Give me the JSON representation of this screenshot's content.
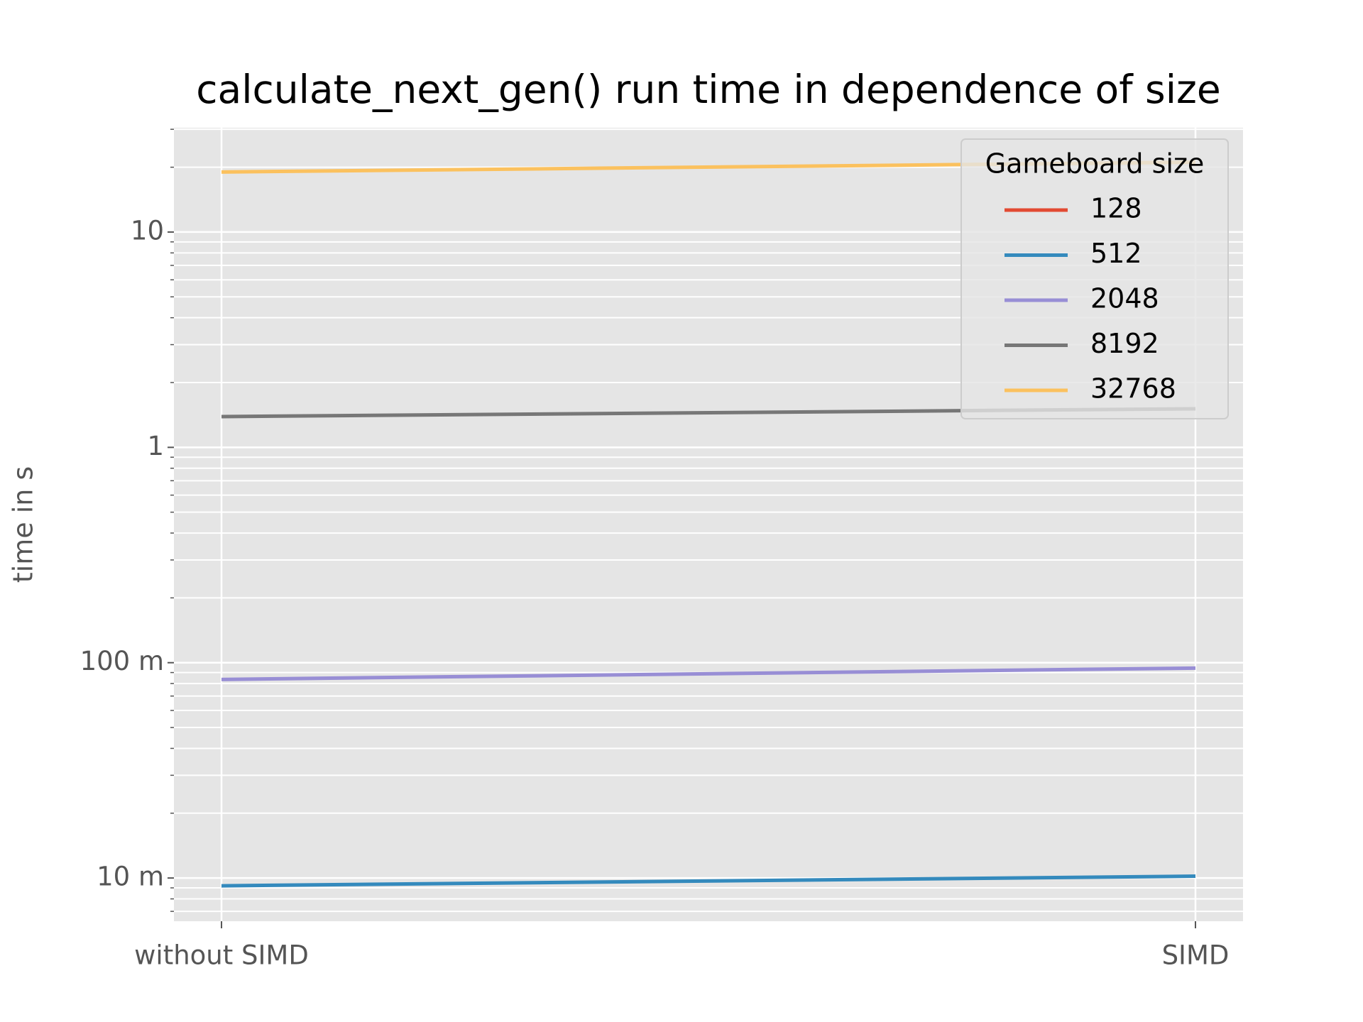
{
  "chart_data": {
    "type": "line",
    "title": "calculate_next_gen() run time in dependence of size",
    "y_label": "time in s",
    "categories": [
      "without SIMD",
      "SIMD"
    ],
    "series": [
      {
        "name": "128",
        "color": "#E24A33",
        "values": [
          null,
          null
        ]
      },
      {
        "name": "512",
        "color": "#348ABD",
        "values": [
          0.0092,
          0.0102
        ]
      },
      {
        "name": "2048",
        "color": "#988ED5",
        "values": [
          0.0836,
          0.0944
        ]
      },
      {
        "name": "8192",
        "color": "#777777",
        "values": [
          1.39,
          1.51
        ]
      },
      {
        "name": "32768",
        "color": "#FBC15E",
        "values": [
          19.0,
          21.1
        ]
      }
    ],
    "y_scale": "log",
    "ylim": [
      0.0063,
      30.5
    ],
    "yticks": [
      {
        "value": 0.01,
        "label": "10 m"
      },
      {
        "value": 0.1,
        "label": "100 m"
      },
      1,
      10
    ],
    "grid": true,
    "legend_title": "Gameboard size",
    "legend_position": "upper right"
  }
}
